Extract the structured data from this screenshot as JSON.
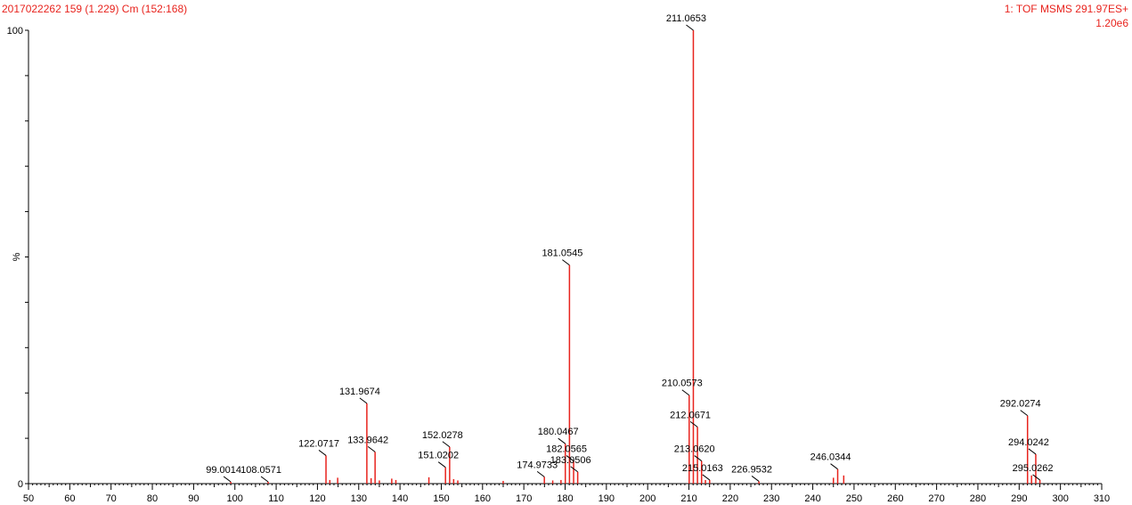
{
  "header": {
    "left": "2017022262 159 (1.229) Cm (152:168)",
    "right": "1: TOF MSMS 291.97ES+",
    "scale": "1.20e6"
  },
  "colors": {
    "peak": "#e8231d",
    "header": "#e8231d",
    "axis": "#000000"
  },
  "chart_data": {
    "type": "bar",
    "title": "",
    "xlabel": "",
    "ylabel": "%",
    "xlim": [
      50,
      310
    ],
    "ylim": [
      0,
      100
    ],
    "y_ticks": [
      "0",
      "100"
    ],
    "x_ticks": [
      "50",
      "60",
      "70",
      "80",
      "90",
      "100",
      "110",
      "120",
      "130",
      "140",
      "150",
      "160",
      "170",
      "180",
      "190",
      "200",
      "210",
      "220",
      "230",
      "240",
      "250",
      "260",
      "270",
      "280",
      "290",
      "300",
      "310"
    ],
    "peaks": [
      {
        "mz": 99.0014,
        "intensity": 0.4,
        "label": "99.0014"
      },
      {
        "mz": 108.0571,
        "intensity": 0.4,
        "label": "108.0571"
      },
      {
        "mz": 122.0717,
        "intensity": 6.2,
        "label": "122.0717"
      },
      {
        "mz": 123.0,
        "intensity": 0.8,
        "label": ""
      },
      {
        "mz": 124.9,
        "intensity": 1.3,
        "label": ""
      },
      {
        "mz": 131.9674,
        "intensity": 17.7,
        "label": "131.9674"
      },
      {
        "mz": 133.0,
        "intensity": 1.2,
        "label": ""
      },
      {
        "mz": 133.9642,
        "intensity": 7.0,
        "label": "133.9642"
      },
      {
        "mz": 135.0,
        "intensity": 0.7,
        "label": ""
      },
      {
        "mz": 138.0,
        "intensity": 1.1,
        "label": ""
      },
      {
        "mz": 139.0,
        "intensity": 0.8,
        "label": ""
      },
      {
        "mz": 147.0,
        "intensity": 1.4,
        "label": ""
      },
      {
        "mz": 151.0202,
        "intensity": 3.6,
        "label": "151.0202"
      },
      {
        "mz": 152.0278,
        "intensity": 8.1,
        "label": "152.0278"
      },
      {
        "mz": 153.0,
        "intensity": 1.0,
        "label": ""
      },
      {
        "mz": 154.0,
        "intensity": 0.7,
        "label": ""
      },
      {
        "mz": 165.0,
        "intensity": 0.6,
        "label": ""
      },
      {
        "mz": 174.9733,
        "intensity": 1.5,
        "label": "174.9733"
      },
      {
        "mz": 177.0,
        "intensity": 0.7,
        "label": ""
      },
      {
        "mz": 179.0,
        "intensity": 0.8,
        "label": ""
      },
      {
        "mz": 180.0467,
        "intensity": 8.8,
        "label": "180.0467"
      },
      {
        "mz": 181.0545,
        "intensity": 48.2,
        "label": "181.0545"
      },
      {
        "mz": 182.0565,
        "intensity": 5.0,
        "label": "182.0565"
      },
      {
        "mz": 183.0506,
        "intensity": 2.6,
        "label": "183.0506"
      },
      {
        "mz": 210.0573,
        "intensity": 19.5,
        "label": "210.0573"
      },
      {
        "mz": 211.0653,
        "intensity": 100,
        "label": "211.0653"
      },
      {
        "mz": 212.0671,
        "intensity": 12.5,
        "label": "212.0671"
      },
      {
        "mz": 213.062,
        "intensity": 5.0,
        "label": "213.0620"
      },
      {
        "mz": 214.0,
        "intensity": 0.8,
        "label": ""
      },
      {
        "mz": 215.0163,
        "intensity": 0.8,
        "label": "215.0163"
      },
      {
        "mz": 226.9532,
        "intensity": 0.5,
        "label": "226.9532"
      },
      {
        "mz": 245.0,
        "intensity": 1.3,
        "label": ""
      },
      {
        "mz": 246.0344,
        "intensity": 3.2,
        "label": "246.0344"
      },
      {
        "mz": 247.5,
        "intensity": 1.8,
        "label": ""
      },
      {
        "mz": 292.0274,
        "intensity": 15.0,
        "label": "292.0274"
      },
      {
        "mz": 293.0,
        "intensity": 1.8,
        "label": ""
      },
      {
        "mz": 294.0242,
        "intensity": 6.5,
        "label": "294.0242"
      },
      {
        "mz": 295.0262,
        "intensity": 0.8,
        "label": "295.0262"
      }
    ]
  }
}
